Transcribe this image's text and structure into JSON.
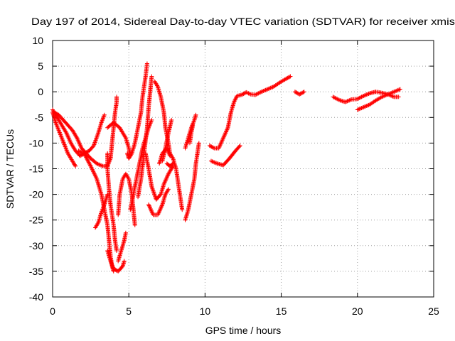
{
  "chart_data": {
    "type": "scatter",
    "title": "Day 197 of 2014, Sidereal Day-to-day VTEC variation (SDTVAR) for receiver xmis",
    "xlabel": "GPS time / hours",
    "ylabel": "SDTVAR / TECUs",
    "xlim": [
      0,
      25
    ],
    "ylim": [
      -40,
      10
    ],
    "xticks": [
      "0",
      "5",
      "10",
      "15",
      "20",
      "25"
    ],
    "yticks": [
      "10",
      "5",
      "0",
      "-5",
      "-10",
      "-15",
      "-20",
      "-25",
      "-30",
      "-35",
      "-40"
    ],
    "grid": true,
    "marker": "+",
    "color": "#ff0000",
    "series": [
      {
        "points": [
          [
            0.0,
            -3.5
          ],
          [
            0.3,
            -5
          ],
          [
            0.6,
            -6.5
          ],
          [
            0.9,
            -8
          ],
          [
            1.2,
            -10
          ],
          [
            1.5,
            -11.5
          ],
          [
            1.8,
            -12.5
          ],
          [
            2.1,
            -12
          ],
          [
            2.4,
            -11.5
          ],
          [
            2.7,
            -10.5
          ],
          [
            3.0,
            -8
          ],
          [
            3.2,
            -6
          ],
          [
            3.4,
            -4.5
          ]
        ]
      },
      {
        "points": [
          [
            0.0,
            -4
          ],
          [
            0.2,
            -6
          ],
          [
            0.4,
            -7.5
          ],
          [
            0.6,
            -9
          ],
          [
            0.8,
            -10.5
          ],
          [
            1.0,
            -12
          ],
          [
            1.2,
            -13
          ],
          [
            1.4,
            -14
          ],
          [
            1.5,
            -14.5
          ]
        ]
      },
      {
        "points": [
          [
            0.1,
            -4
          ],
          [
            0.4,
            -4.5
          ],
          [
            0.7,
            -5.5
          ],
          [
            1.0,
            -6.5
          ],
          [
            1.3,
            -7.5
          ],
          [
            1.6,
            -9
          ],
          [
            1.9,
            -11
          ],
          [
            2.2,
            -12
          ],
          [
            2.5,
            -13
          ],
          [
            2.9,
            -14
          ],
          [
            3.3,
            -14.5
          ],
          [
            3.6,
            -14.5
          ],
          [
            3.8,
            -13
          ],
          [
            3.9,
            -10
          ],
          [
            4.0,
            -7
          ],
          [
            4.1,
            -4
          ],
          [
            4.2,
            -2
          ],
          [
            4.2,
            -1
          ]
        ]
      },
      {
        "points": [
          [
            1.7,
            -11.5
          ],
          [
            2.1,
            -12.2
          ],
          [
            2.5,
            -14.5
          ],
          [
            2.9,
            -17
          ],
          [
            3.2,
            -20
          ],
          [
            3.4,
            -23
          ],
          [
            3.6,
            -26
          ],
          [
            3.7,
            -29
          ],
          [
            3.8,
            -32
          ],
          [
            3.9,
            -34
          ],
          [
            4.0,
            -35
          ]
        ]
      },
      {
        "points": [
          [
            2.8,
            -26.5
          ],
          [
            3.0,
            -25.5
          ],
          [
            3.2,
            -23.5
          ],
          [
            3.4,
            -22
          ],
          [
            3.6,
            -20
          ]
        ]
      },
      {
        "points": [
          [
            3.6,
            -31
          ],
          [
            3.8,
            -33
          ],
          [
            4.0,
            -34.5
          ],
          [
            4.3,
            -35
          ],
          [
            4.6,
            -34
          ],
          [
            4.7,
            -33
          ]
        ]
      },
      {
        "points": [
          [
            3.6,
            -12
          ],
          [
            3.6,
            -15
          ],
          [
            3.7,
            -19
          ],
          [
            3.8,
            -22
          ],
          [
            4.0,
            -26
          ],
          [
            4.1,
            -29
          ],
          [
            4.2,
            -31
          ]
        ]
      },
      {
        "points": [
          [
            3.6,
            -7
          ],
          [
            4.0,
            -6
          ],
          [
            4.4,
            -7
          ],
          [
            4.8,
            -9
          ],
          [
            5.0,
            -11
          ],
          [
            5.1,
            -12.5
          ]
        ]
      },
      {
        "points": [
          [
            4.3,
            -24
          ],
          [
            4.4,
            -20
          ],
          [
            4.6,
            -17
          ],
          [
            4.8,
            -16
          ],
          [
            5.0,
            -17
          ],
          [
            5.2,
            -20
          ],
          [
            5.3,
            -23
          ],
          [
            5.4,
            -26
          ]
        ]
      },
      {
        "points": [
          [
            4.3,
            -33
          ],
          [
            4.5,
            -31
          ],
          [
            4.7,
            -29
          ],
          [
            4.8,
            -27.5
          ]
        ]
      },
      {
        "points": [
          [
            4.9,
            -12
          ],
          [
            5.0,
            -13
          ],
          [
            5.2,
            -12
          ],
          [
            5.4,
            -10
          ],
          [
            5.6,
            -7
          ],
          [
            5.8,
            -4
          ],
          [
            5.9,
            -1
          ],
          [
            6.0,
            1
          ],
          [
            6.1,
            3
          ],
          [
            6.2,
            5.5
          ]
        ]
      },
      {
        "points": [
          [
            5.1,
            -23
          ],
          [
            5.3,
            -20
          ],
          [
            5.5,
            -17
          ],
          [
            5.7,
            -14
          ],
          [
            5.9,
            -11
          ],
          [
            6.1,
            -9
          ],
          [
            6.3,
            -7
          ],
          [
            6.5,
            -5.5
          ]
        ]
      },
      {
        "points": [
          [
            5.6,
            -20.5
          ],
          [
            5.8,
            -17
          ],
          [
            6.0,
            -12
          ],
          [
            6.2,
            -7
          ],
          [
            6.3,
            -3
          ],
          [
            6.4,
            0
          ],
          [
            6.5,
            3
          ]
        ]
      },
      {
        "points": [
          [
            6.1,
            -12
          ],
          [
            6.3,
            -15
          ],
          [
            6.5,
            -18.5
          ],
          [
            6.8,
            -21
          ],
          [
            7.1,
            -20
          ],
          [
            7.3,
            -18
          ],
          [
            7.6,
            -16
          ],
          [
            7.9,
            -14.5
          ]
        ]
      },
      {
        "points": [
          [
            6.3,
            -22
          ],
          [
            6.6,
            -24
          ],
          [
            6.9,
            -24
          ],
          [
            7.2,
            -22
          ],
          [
            7.4,
            -20
          ],
          [
            7.6,
            -19
          ]
        ]
      },
      {
        "points": [
          [
            6.7,
            2
          ],
          [
            6.9,
            1
          ],
          [
            7.1,
            -1
          ],
          [
            7.3,
            -4
          ],
          [
            7.4,
            -7
          ],
          [
            7.6,
            -10
          ],
          [
            7.7,
            -12
          ],
          [
            7.9,
            -13
          ],
          [
            8.1,
            -15
          ],
          [
            8.3,
            -19
          ],
          [
            8.5,
            -23
          ]
        ]
      },
      {
        "points": [
          [
            7.2,
            -13.5
          ],
          [
            7.4,
            -11
          ],
          [
            7.6,
            -8
          ],
          [
            7.8,
            -5.5
          ]
        ]
      },
      {
        "points": [
          [
            7.0,
            -14
          ],
          [
            7.2,
            -12
          ],
          [
            7.5,
            -11
          ],
          [
            7.7,
            -12.5
          ]
        ]
      },
      {
        "points": [
          [
            7.5,
            -14
          ],
          [
            7.7,
            -14.5
          ],
          [
            7.9,
            -14
          ]
        ]
      },
      {
        "points": [
          [
            8.7,
            -25
          ],
          [
            8.9,
            -23
          ],
          [
            9.1,
            -20
          ],
          [
            9.3,
            -17
          ],
          [
            9.4,
            -14
          ],
          [
            9.5,
            -12
          ],
          [
            9.6,
            -10
          ]
        ]
      },
      {
        "points": [
          [
            8.7,
            -11
          ],
          [
            8.9,
            -9
          ],
          [
            9.1,
            -7
          ],
          [
            9.3,
            -5.5
          ],
          [
            9.4,
            -4.5
          ]
        ]
      },
      {
        "points": [
          [
            9.0,
            -10
          ],
          [
            9.1,
            -8
          ],
          [
            9.2,
            -6.5
          ]
        ]
      },
      {
        "points": [
          [
            10.3,
            -10.5
          ],
          [
            10.6,
            -11
          ],
          [
            10.9,
            -11
          ],
          [
            11.2,
            -9
          ],
          [
            11.5,
            -7
          ],
          [
            11.7,
            -4
          ],
          [
            11.9,
            -2
          ],
          [
            12.1,
            -0.8
          ],
          [
            12.4,
            -0.6
          ],
          [
            12.7,
            -0.1
          ],
          [
            13.0,
            -0.5
          ],
          [
            13.3,
            -0.6
          ],
          [
            13.7,
            0
          ],
          [
            14.1,
            0.5
          ],
          [
            14.5,
            1
          ],
          [
            14.9,
            1.8
          ],
          [
            15.3,
            2.5
          ],
          [
            15.6,
            3
          ]
        ]
      },
      {
        "points": [
          [
            10.4,
            -13.5
          ],
          [
            10.8,
            -14
          ],
          [
            11.2,
            -14.3
          ],
          [
            11.6,
            -13
          ],
          [
            12.0,
            -11.5
          ],
          [
            12.3,
            -10.5
          ]
        ]
      },
      {
        "points": [
          [
            15.9,
            0
          ],
          [
            16.2,
            -0.5
          ],
          [
            16.5,
            0
          ]
        ]
      },
      {
        "points": [
          [
            18.4,
            -1
          ],
          [
            18.8,
            -1.6
          ],
          [
            19.2,
            -2
          ],
          [
            19.6,
            -1.5
          ],
          [
            20.0,
            -1.4
          ],
          [
            20.4,
            -0.8
          ],
          [
            20.8,
            -0.3
          ],
          [
            21.2,
            0
          ],
          [
            21.6,
            -0.2
          ],
          [
            22.0,
            -0.5
          ],
          [
            22.4,
            -1
          ],
          [
            22.7,
            -1
          ]
        ]
      },
      {
        "points": [
          [
            20.0,
            -3.5
          ],
          [
            20.4,
            -3
          ],
          [
            20.8,
            -2.5
          ],
          [
            21.2,
            -1.7
          ],
          [
            21.6,
            -1
          ],
          [
            22.0,
            -0.5
          ],
          [
            22.4,
            0
          ],
          [
            22.8,
            0.5
          ]
        ]
      }
    ]
  }
}
